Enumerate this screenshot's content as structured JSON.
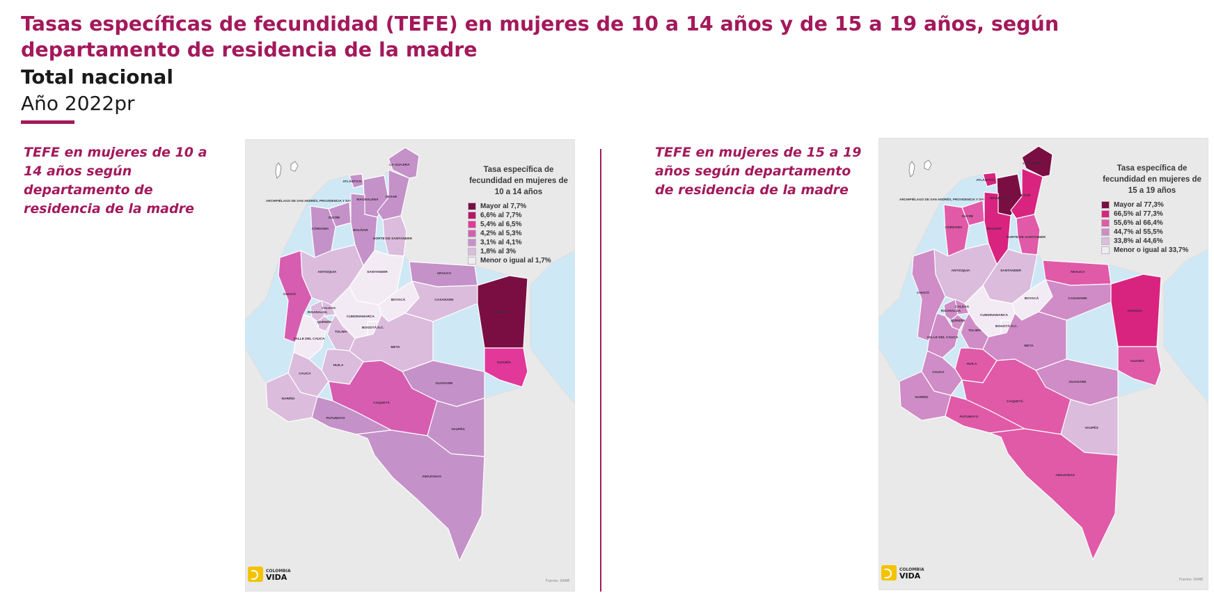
{
  "header": {
    "title": "Tasas específicas de fecundidad (TEFE) en mujeres de 10 a 14 años y de 15 a 19 años, según departamento de residencia de la madre",
    "subtitle": "Total nacional",
    "year": "Año 2022pr"
  },
  "colors": {
    "accent": "#a3195b",
    "sea": "#cfe8f5",
    "land_neighbor": "#e9e9e9",
    "border": "#ffffff"
  },
  "maps": [
    {
      "caption": "TEFE en mujeres de 10 a 14 años según departamento de residencia de la madre",
      "legend_title": "Tasa específica de fecundidad en mujeres de 10 a 14 años",
      "legend": [
        {
          "label": "Mayor al 7,7%",
          "color": "#7a0e43"
        },
        {
          "label": "6,6% al 7,7%",
          "color": "#b71667"
        },
        {
          "label": "5,4% al 6,5%",
          "color": "#e1389a"
        },
        {
          "label": "4,2% al 5,3%",
          "color": "#d75db1"
        },
        {
          "label": "3,1% al 4,1%",
          "color": "#c591c9"
        },
        {
          "label": "1,8% al 3%",
          "color": "#dbbcdd"
        },
        {
          "label": "Menor o igual al 1,7%",
          "color": "#f3ebf4"
        }
      ],
      "regions": [
        {
          "name": "LA GUAJIRA",
          "color": "#c591c9"
        },
        {
          "name": "ATLÁNTICO",
          "color": "#c591c9"
        },
        {
          "name": "MAGDALENA",
          "color": "#c591c9"
        },
        {
          "name": "CESAR",
          "color": "#c591c9"
        },
        {
          "name": "SUCRE",
          "color": "#c591c9"
        },
        {
          "name": "BOLÍVAR",
          "color": "#c591c9"
        },
        {
          "name": "CÓRDOBA",
          "color": "#c591c9"
        },
        {
          "name": "NORTE DE SANTANDER",
          "color": "#dbbcdd"
        },
        {
          "name": "ANTIOQUIA",
          "color": "#dbbcdd"
        },
        {
          "name": "SANTANDER",
          "color": "#f3ebf4"
        },
        {
          "name": "ARAUCA",
          "color": "#c591c9"
        },
        {
          "name": "CHOCÓ",
          "color": "#d75db1"
        },
        {
          "name": "BOYACÁ",
          "color": "#f3ebf4"
        },
        {
          "name": "CASANARE",
          "color": "#dbbcdd"
        },
        {
          "name": "VICHADA",
          "color": "#7a0e43"
        },
        {
          "name": "CALDAS",
          "color": "#dbbcdd"
        },
        {
          "name": "RISARALDA",
          "color": "#dbbcdd"
        },
        {
          "name": "CUNDINAMARCA",
          "color": "#f3ebf4"
        },
        {
          "name": "QUINDÍO",
          "color": "#dbbcdd"
        },
        {
          "name": "TOLIMA",
          "color": "#dbbcdd"
        },
        {
          "name": "BOGOTÁ D.C.",
          "color": "#f3ebf4"
        },
        {
          "name": "VALLE DEL CAUCA",
          "color": "#f3ebf4"
        },
        {
          "name": "META",
          "color": "#dbbcdd"
        },
        {
          "name": "HUILA",
          "color": "#dbbcdd"
        },
        {
          "name": "GUAINÍA",
          "color": "#e1389a"
        },
        {
          "name": "CAUCA",
          "color": "#dbbcdd"
        },
        {
          "name": "GUAVIARE",
          "color": "#c591c9"
        },
        {
          "name": "NARIÑO",
          "color": "#dbbcdd"
        },
        {
          "name": "CAQUETÁ",
          "color": "#d75db1"
        },
        {
          "name": "VAUPÉS",
          "color": "#c591c9"
        },
        {
          "name": "PUTUMAYO",
          "color": "#c591c9"
        },
        {
          "name": "AMAZONAS",
          "color": "#c591c9"
        }
      ],
      "islands_label": "ARCHIPIÉLAGO DE SAN ANDRÉS, PROVIDENCIA Y SANTA CATALINA",
      "logo_small": "COLOMBIA",
      "logo_big": "VIDA",
      "source": "Fuente: DANE"
    },
    {
      "caption": "TEFE en mujeres de 15 a 19 años según departamento de residencia de la madre",
      "legend_title": "Tasa específica de fecundidad en mujeres de 15 a 19 años",
      "legend": [
        {
          "label": "Mayor al 77,3%",
          "color": "#7a0e43"
        },
        {
          "label": "66,5% al 77,3%",
          "color": "#d8247f"
        },
        {
          "label": "55,6% al 66,4%",
          "color": "#e05aa8"
        },
        {
          "label": "44,7% al 55,5%",
          "color": "#cf8cc6"
        },
        {
          "label": "33,8% al 44,6%",
          "color": "#dbbcdd"
        },
        {
          "label": "Menor o igual al 33,7%",
          "color": "#f3ebf4"
        }
      ],
      "regions": [
        {
          "name": "LA GUAJIRA",
          "color": "#7a0e43"
        },
        {
          "name": "ATLÁNTICO",
          "color": "#d8247f"
        },
        {
          "name": "MAGDALENA",
          "color": "#7a0e43"
        },
        {
          "name": "CESAR",
          "color": "#d8247f"
        },
        {
          "name": "SUCRE",
          "color": "#e05aa8"
        },
        {
          "name": "BOLÍVAR",
          "color": "#d8247f"
        },
        {
          "name": "CÓRDOBA",
          "color": "#e05aa8"
        },
        {
          "name": "NORTE DE SANTANDER",
          "color": "#e05aa8"
        },
        {
          "name": "ANTIOQUIA",
          "color": "#dbbcdd"
        },
        {
          "name": "SANTANDER",
          "color": "#dbbcdd"
        },
        {
          "name": "ARAUCA",
          "color": "#e05aa8"
        },
        {
          "name": "CHOCÓ",
          "color": "#cf8cc6"
        },
        {
          "name": "BOYACÁ",
          "color": "#f3ebf4"
        },
        {
          "name": "CASANARE",
          "color": "#cf8cc6"
        },
        {
          "name": "VICHADA",
          "color": "#d8247f"
        },
        {
          "name": "CALDAS",
          "color": "#cf8cc6"
        },
        {
          "name": "RISARALDA",
          "color": "#cf8cc6"
        },
        {
          "name": "CUNDINAMARCA",
          "color": "#f3ebf4"
        },
        {
          "name": "QUINDÍO",
          "color": "#cf8cc6"
        },
        {
          "name": "TOLIMA",
          "color": "#cf8cc6"
        },
        {
          "name": "BOGOTÁ D.C.",
          "color": "#f3ebf4"
        },
        {
          "name": "VALLE DEL CAUCA",
          "color": "#cf8cc6"
        },
        {
          "name": "META",
          "color": "#cf8cc6"
        },
        {
          "name": "HUILA",
          "color": "#e05aa8"
        },
        {
          "name": "GUAINÍA",
          "color": "#e05aa8"
        },
        {
          "name": "CAUCA",
          "color": "#cf8cc6"
        },
        {
          "name": "GUAVIARE",
          "color": "#cf8cc6"
        },
        {
          "name": "NARIÑO",
          "color": "#cf8cc6"
        },
        {
          "name": "CAQUETÁ",
          "color": "#e05aa8"
        },
        {
          "name": "VAUPÉS",
          "color": "#dbbcdd"
        },
        {
          "name": "PUTUMAYO",
          "color": "#e05aa8"
        },
        {
          "name": "AMAZONAS",
          "color": "#e05aa8"
        }
      ],
      "islands_label": "ARCHIPIÉLAGO DE SAN ANDRÉS, PROVIDENCIA Y SANTA CATALINA",
      "logo_small": "COLOMBIA",
      "logo_big": "VIDA",
      "source": "Fuente: DANE"
    }
  ]
}
